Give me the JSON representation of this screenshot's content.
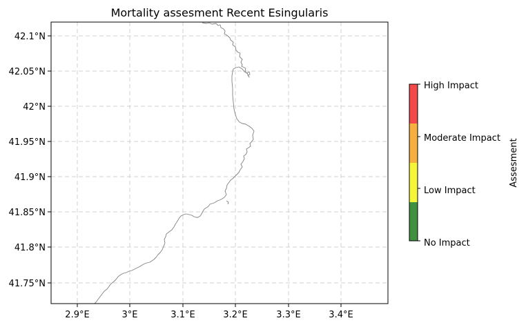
{
  "title": "Mortality assesment Recent Esingularis",
  "map": {
    "x_ticks": [
      "2.9°E",
      "3°E",
      "3.1°E",
      "3.2°E",
      "3.3°E",
      "3.4°E"
    ],
    "y_ticks": [
      "42.1°N",
      "42.05°N",
      "42°N",
      "41.95°N",
      "41.9°N",
      "41.85°N",
      "41.8°N",
      "41.75°N"
    ],
    "grid": true,
    "grid_style": "dashed",
    "coastline_color": "#808080"
  },
  "colorbar": {
    "label": "Assesment",
    "categories": [
      {
        "label": "No Impact",
        "color": "#3f9140"
      },
      {
        "label": "Low Impact",
        "color": "#f5f53a"
      },
      {
        "label": "Moderate Impact",
        "color": "#f5b040"
      },
      {
        "label": "High Impact",
        "color": "#f24a4a"
      }
    ],
    "tick_labels": [
      "No Impact",
      "Low Impact",
      "Moderate Impact",
      "High Impact"
    ]
  }
}
